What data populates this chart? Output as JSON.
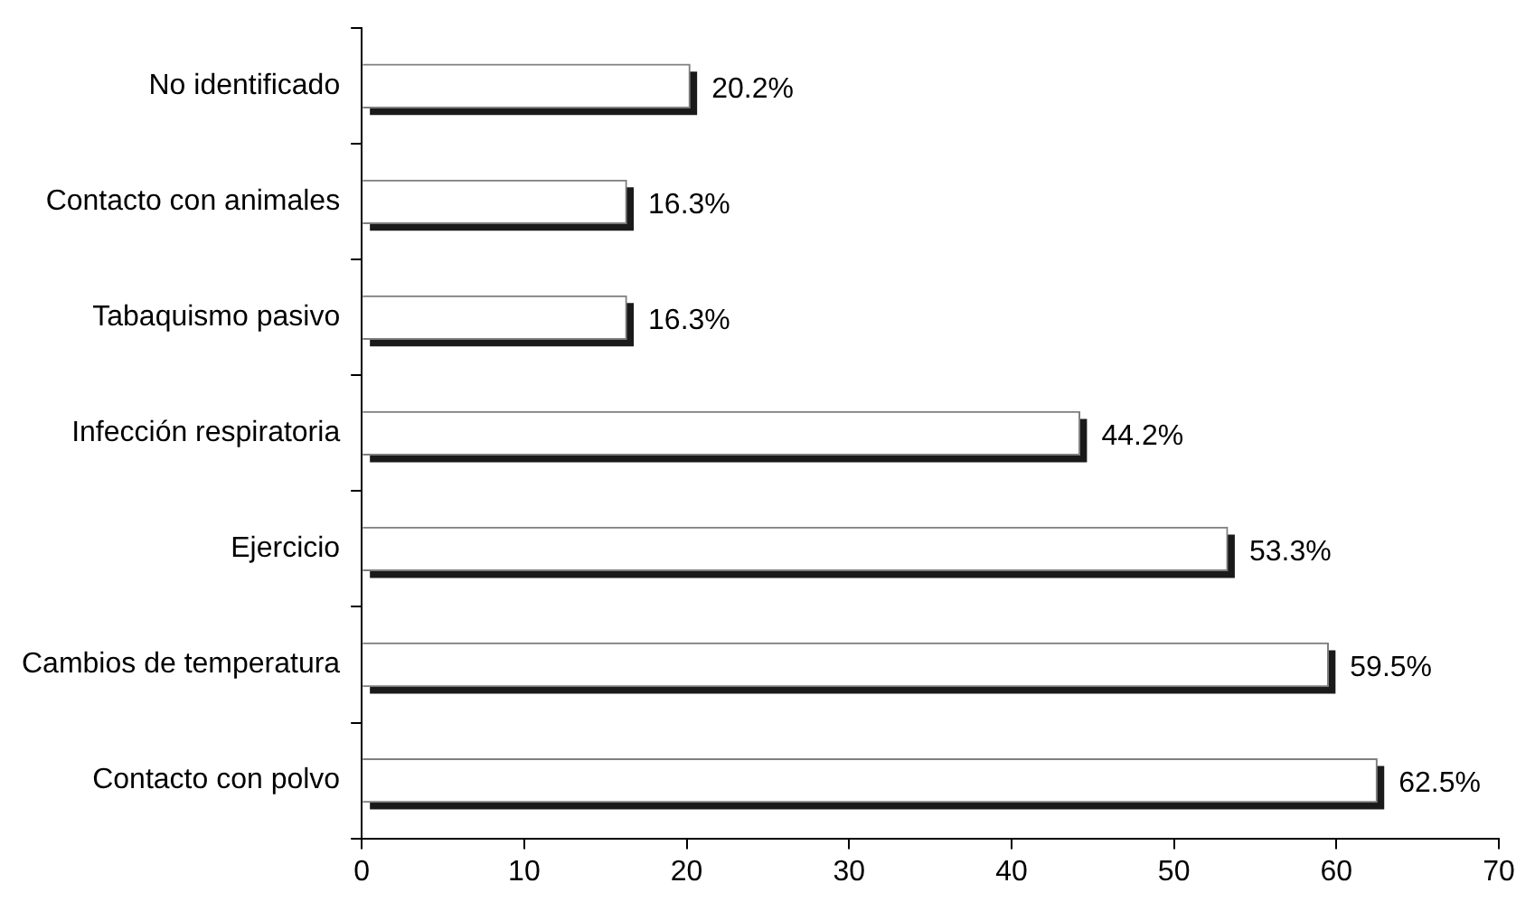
{
  "chart_data": {
    "type": "bar",
    "orientation": "horizontal",
    "categories": [
      "No identificado",
      "Contacto con animales",
      "Tabaquismo pasivo",
      "Infección respiratoria",
      "Ejercicio",
      "Cambios de temperatura",
      "Contacto con polvo"
    ],
    "values": [
      20.2,
      16.3,
      16.3,
      44.2,
      53.3,
      59.5,
      62.5
    ],
    "value_labels": [
      "20.2%",
      "16.3%",
      "16.3%",
      "44.2%",
      "53.3%",
      "59.5%",
      "62.5%"
    ],
    "color": "#ffffff",
    "xlim": [
      0,
      70
    ],
    "xticks": [
      0,
      10,
      20,
      30,
      40,
      50,
      60,
      70
    ],
    "grid": false,
    "legend": false
  }
}
